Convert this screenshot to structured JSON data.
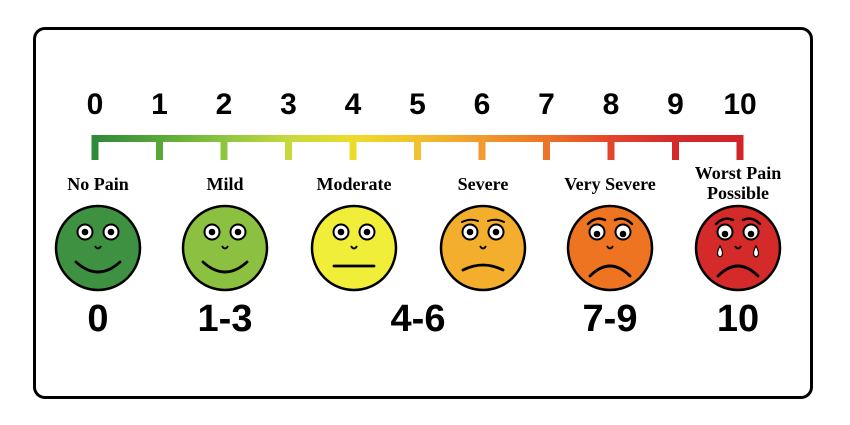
{
  "scale": {
    "ticks": [
      "0",
      "1",
      "2",
      "3",
      "4",
      "5",
      "6",
      "7",
      "8",
      "9",
      "10"
    ],
    "colors": [
      "#2e8b3a",
      "#58a838",
      "#8cc63f",
      "#c6d93c",
      "#ecdc2a",
      "#f2c12e",
      "#f19a2d",
      "#ec7428",
      "#e4452a",
      "#d42a2a",
      "#d1252a"
    ]
  },
  "faces": [
    {
      "label": "No Pain",
      "color": "#3e9141",
      "mood": "happy",
      "tears": false
    },
    {
      "label": "Mild",
      "color": "#8cc040",
      "mood": "happy",
      "tears": false
    },
    {
      "label": "Moderate",
      "color": "#f1ee3a",
      "mood": "neutral",
      "tears": false
    },
    {
      "label": "Severe",
      "color": "#f2ae2c",
      "mood": "frown",
      "tears": false
    },
    {
      "label": "Very Severe",
      "color": "#ee7422",
      "mood": "sad",
      "tears": false
    },
    {
      "label": "Worst Pain Possible",
      "color": "#d42a2a",
      "mood": "cry",
      "tears": true
    }
  ],
  "ranges": [
    "0",
    "1-3",
    "4-6",
    "7-9",
    "10"
  ]
}
